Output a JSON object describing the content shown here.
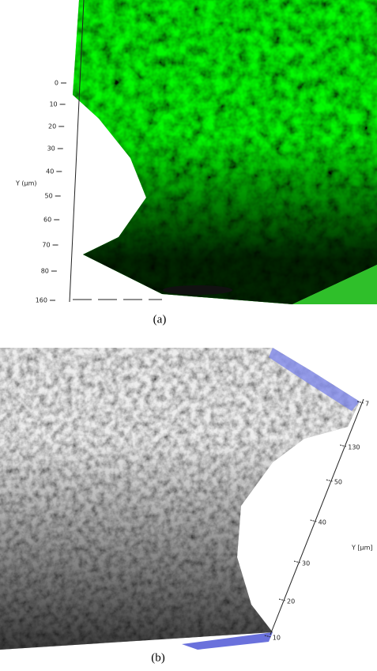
{
  "panel_a": {
    "axis_label": "Y (µm)",
    "ticks": [
      "0",
      "10",
      "20",
      "30",
      "40",
      "50",
      "60",
      "70",
      "80",
      "160"
    ],
    "caption": "(a)"
  },
  "panel_b": {
    "axis_label": "Y [µm]",
    "ticks": [
      "7",
      "130",
      "50",
      "40",
      "30",
      "20",
      "10"
    ],
    "caption": "(b)"
  }
}
